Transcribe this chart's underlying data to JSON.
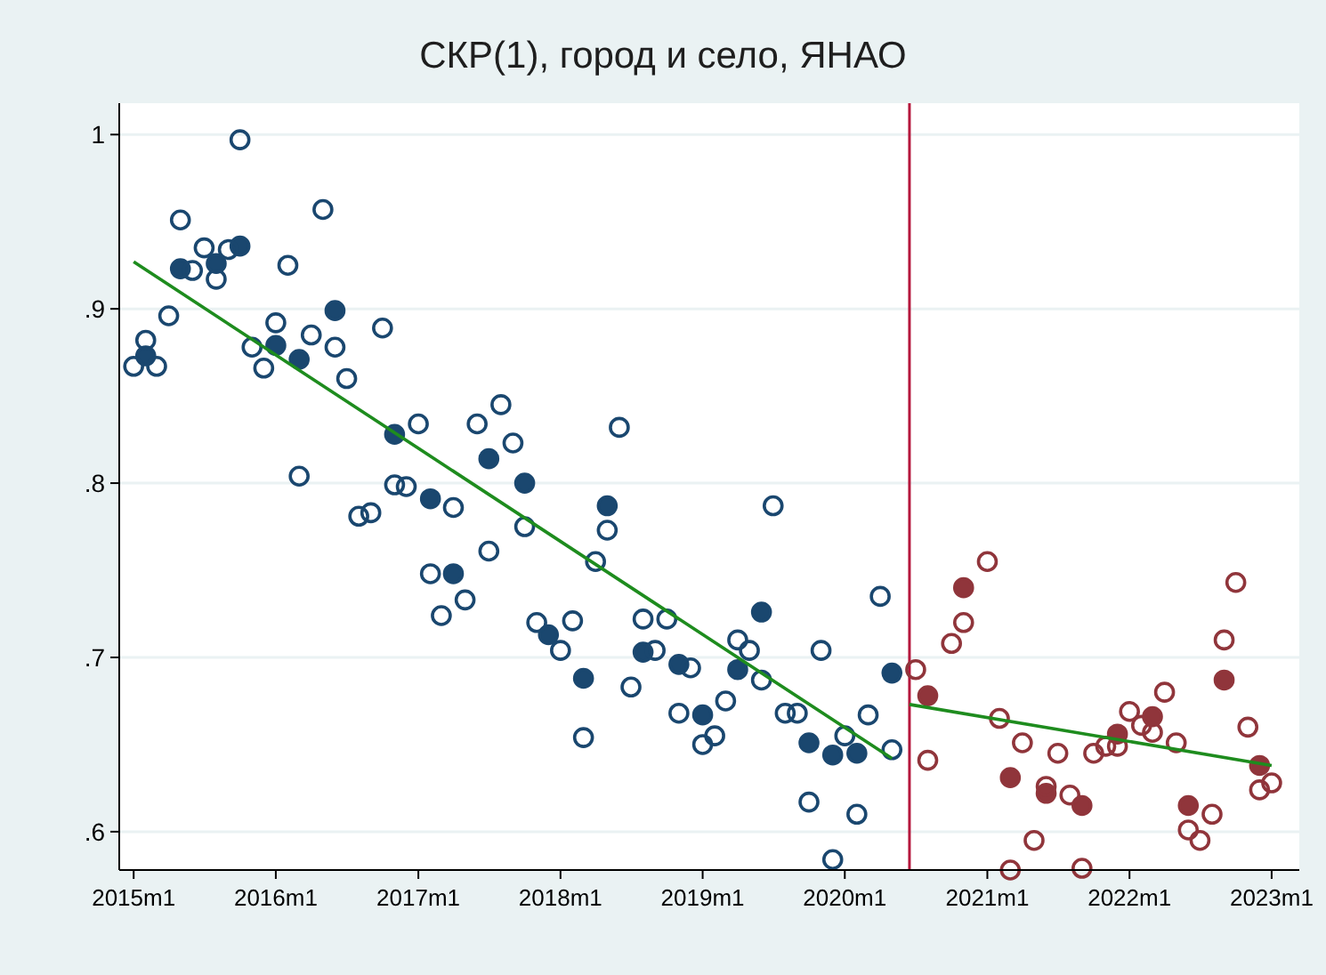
{
  "chart_data": {
    "type": "scatter",
    "title": "СКР(1), город и село, ЯНАО",
    "xlim": [
      "2014-11-25",
      "2023-03-13"
    ],
    "ylim": [
      0.578,
      1.018
    ],
    "xticks": [
      {
        "value": "2015-01",
        "label": "2015m1"
      },
      {
        "value": "2016-01",
        "label": "2016m1"
      },
      {
        "value": "2017-01",
        "label": "2017m1"
      },
      {
        "value": "2018-01",
        "label": "2018m1"
      },
      {
        "value": "2019-01",
        "label": "2019m1"
      },
      {
        "value": "2020-01",
        "label": "2020m1"
      },
      {
        "value": "2021-01",
        "label": "2021m1"
      },
      {
        "value": "2022-01",
        "label": "2022m1"
      },
      {
        "value": "2023-01",
        "label": "2023m1"
      }
    ],
    "yticks": [
      {
        "value": 0.6,
        "label": ".6"
      },
      {
        "value": 0.7,
        "label": ".7"
      },
      {
        "value": 0.8,
        "label": ".8"
      },
      {
        "value": 0.9,
        "label": ".9"
      },
      1
    ],
    "grid": "y",
    "ref_lines": [
      {
        "axis": "x",
        "value": "2020-06-15",
        "color": "#b5173c"
      }
    ],
    "series": [
      {
        "color": "#1a476f",
        "marker": "circle",
        "x": [
          "2015-02",
          "2015-05",
          "2015-08",
          "2015-10",
          "2016-01",
          "2016-03",
          "2016-06",
          "2016-11",
          "2017-02",
          "2017-04",
          "2017-07",
          "2017-10",
          "2017-12",
          "2018-03",
          "2018-05",
          "2018-08",
          "2018-11",
          "2019-01",
          "2019-04",
          "2019-06",
          "2019-10",
          "2019-12",
          "2020-02",
          "2020-05"
        ],
        "values": [
          0.873,
          0.923,
          0.926,
          0.936,
          0.879,
          0.871,
          0.899,
          0.828,
          0.791,
          0.748,
          0.814,
          0.8,
          0.713,
          0.688,
          0.787,
          0.703,
          0.696,
          0.667,
          0.693,
          0.726,
          0.651,
          0.644,
          0.645,
          0.691
        ]
      },
      {
        "color": "#1a476f",
        "x": [
          "2015-01",
          "2015-02",
          "2015-03",
          "2015-04",
          "2015-05",
          "2015-06",
          "2015-07",
          "2015-08",
          "2015-09",
          "2015-10",
          "2015-11",
          "2015-12",
          "2016-01",
          "2016-02",
          "2016-03",
          "2016-04",
          "2016-05",
          "2016-06",
          "2016-07",
          "2016-08",
          "2016-09",
          "2016-10",
          "2016-11",
          "2016-12",
          "2017-01",
          "2017-02",
          "2017-03",
          "2017-04",
          "2017-05",
          "2017-06",
          "2017-07",
          "2017-08",
          "2017-09",
          "2017-10",
          "2017-11",
          "2018-01",
          "2018-02",
          "2018-03",
          "2018-04",
          "2018-05",
          "2018-06",
          "2018-07",
          "2018-08",
          "2018-09",
          "2018-10",
          "2018-11",
          "2018-12",
          "2019-01",
          "2019-02",
          "2019-03",
          "2019-04",
          "2019-05",
          "2019-06",
          "2019-07",
          "2019-08",
          "2019-09",
          "2019-10",
          "2019-11",
          "2019-12",
          "2020-01",
          "2020-02",
          "2020-03",
          "2020-04",
          "2020-05"
        ],
        "values": [
          0.867,
          0.882,
          0.867,
          0.896,
          0.951,
          0.922,
          0.935,
          0.917,
          0.934,
          0.997,
          0.878,
          0.866,
          0.892,
          0.925,
          0.804,
          0.885,
          0.957,
          0.878,
          0.86,
          0.781,
          0.783,
          0.889,
          0.799,
          0.798,
          0.834,
          0.748,
          0.724,
          0.786,
          0.733,
          0.834,
          0.761,
          0.845,
          0.823,
          0.775,
          0.72,
          0.704,
          0.721,
          0.654,
          0.755,
          0.773,
          0.832,
          0.683,
          0.722,
          0.704,
          0.722,
          0.668,
          0.694,
          0.65,
          0.655,
          0.675,
          0.71,
          0.704,
          0.687,
          0.787,
          0.668,
          0.668,
          0.617,
          0.704,
          0.584,
          0.655,
          0.61,
          0.667,
          0.735,
          0.647
        ]
      },
      {
        "color": "#90353b",
        "marker": "circle",
        "x": [
          "2020-08",
          "2020-11",
          "2021-03",
          "2021-06",
          "2021-09",
          "2021-12",
          "2022-03",
          "2022-06",
          "2022-09",
          "2022-12"
        ],
        "values": [
          0.678,
          0.74,
          0.631,
          0.622,
          0.615,
          0.656,
          0.666,
          0.615,
          0.687,
          0.638
        ]
      },
      {
        "color": "#90353b",
        "x": [
          "2020-07",
          "2020-08",
          "2020-10",
          "2020-11",
          "2021-01",
          "2021-02",
          "2021-03",
          "2021-04",
          "2021-05",
          "2021-06",
          "2021-07",
          "2021-08",
          "2021-09",
          "2021-10",
          "2021-11",
          "2021-12",
          "2022-01",
          "2022-02",
          "2022-03",
          "2022-04",
          "2022-05",
          "2022-06",
          "2022-07",
          "2022-08",
          "2022-09",
          "2022-10",
          "2022-11",
          "2022-12",
          "2023-01"
        ],
        "values": [
          0.693,
          0.641,
          0.708,
          0.72,
          0.755,
          0.665,
          0.578,
          0.651,
          0.595,
          0.626,
          0.645,
          0.621,
          0.579,
          0.645,
          0.649,
          0.649,
          0.669,
          0.661,
          0.657,
          0.68,
          0.651,
          0.601,
          0.595,
          0.61,
          0.71,
          0.743,
          0.66,
          0.624,
          0.628
        ]
      },
      {
        "type": "line",
        "color": "#1e8c1e",
        "x": [
          "2015-01",
          "2020-05"
        ],
        "values": [
          0.927,
          0.642
        ]
      },
      {
        "type": "line",
        "color": "#1e8c1e",
        "x": [
          "2020-06-15",
          "2023-01"
        ],
        "values": [
          0.673,
          0.638
        ]
      }
    ]
  }
}
